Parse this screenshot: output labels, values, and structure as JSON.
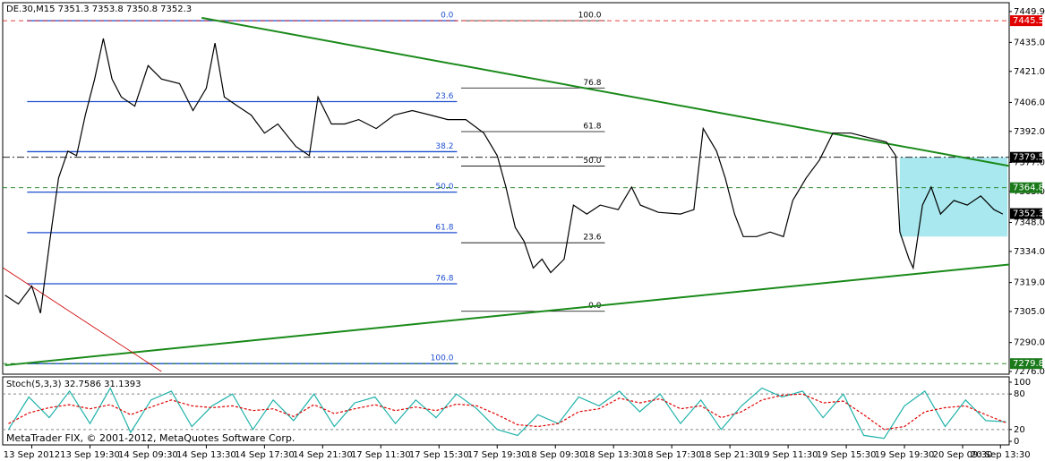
{
  "chart_data": [
    {
      "type": "line",
      "title": "DE.30,M15  7351.3 7353.8 7350.8 7352.3",
      "footer": "MetaTrader FIX, © 2001-2012, MetaQuotes Software Corp.",
      "xlim": [
        -0.5,
        16.8
      ],
      "xticks": [
        {
          "value": 0,
          "label": "13 Sep 2012"
        },
        {
          "value": 1,
          "label": "13 Sep 19:30"
        },
        {
          "value": 2,
          "label": "14 Sep 09:30"
        },
        {
          "value": 3,
          "label": "14 Sep 13:30"
        },
        {
          "value": 4,
          "label": "14 Sep 17:30"
        },
        {
          "value": 5,
          "label": "14 Sep 21:30"
        },
        {
          "value": 6,
          "label": "17 Sep 11:30"
        },
        {
          "value": 7,
          "label": "17 Sep 15:30"
        },
        {
          "value": 8,
          "label": "17 Sep 19:30"
        },
        {
          "value": 9,
          "label": "18 Sep 09:30"
        },
        {
          "value": 10,
          "label": "18 Sep 13:30"
        },
        {
          "value": 11,
          "label": "18 Sep 17:30"
        },
        {
          "value": 12,
          "label": "18 Sep 21:30"
        },
        {
          "value": 13,
          "label": "19 Sep 11:30"
        },
        {
          "value": 14,
          "label": "19 Sep 15:30"
        },
        {
          "value": 15,
          "label": "19 Sep 19:30"
        },
        {
          "value": 16,
          "label": "20 Sep 09:30"
        },
        {
          "value": 16.65,
          "label": "20 Sep 13:30"
        }
      ],
      "ylim": [
        7274.7,
        7454.2
      ],
      "yticks": [
        7449.9,
        {
          "value": 7435,
          "label": "7435.0"
        },
        {
          "value": 7421,
          "label": "7421.0"
        },
        {
          "value": 7406,
          "label": "7406.0"
        },
        {
          "value": 7392,
          "label": "7392.0"
        },
        {
          "value": 7377,
          "label": "7377.0"
        },
        {
          "value": 7363,
          "label": "7363.0"
        },
        {
          "value": 7348,
          "label": "7348.0"
        },
        {
          "value": 7334,
          "label": "7334.0"
        },
        {
          "value": 7319,
          "label": "7319.0"
        },
        {
          "value": 7305,
          "label": "7305.0"
        },
        {
          "value": 7290,
          "label": "7290.0"
        },
        {
          "value": 7276,
          "label": "7276.0"
        }
      ],
      "series": [
        {
          "color": "#000000",
          "x": [
            -0.46,
            -0.23,
            0,
            0.15,
            0.31,
            0.46,
            0.62,
            0.77,
            0.92,
            1.08,
            1.23,
            1.38,
            1.54,
            1.77,
            2.0,
            2.23,
            2.54,
            2.77,
            3.0,
            3.15,
            3.31,
            3.54,
            3.77,
            4.0,
            4.23,
            4.54,
            4.77,
            4.92,
            5.15,
            5.38,
            5.62,
            5.92,
            6.23,
            6.54,
            6.85,
            7.15,
            7.46,
            7.77,
            8.0,
            8.15,
            8.31,
            8.46,
            8.62,
            8.77,
            8.92,
            9.15,
            9.31,
            9.54,
            9.77,
            10.08,
            10.31,
            10.46,
            10.77,
            11.15,
            11.38,
            11.54,
            11.77,
            11.92,
            12.08,
            12.23,
            12.46,
            12.69,
            12.92,
            13.08,
            13.31,
            13.54,
            13.77,
            14.08,
            14.38,
            14.69,
            14.85,
            14.92,
            15.08,
            15.15,
            15.31,
            15.46,
            15.62,
            15.85,
            16.08,
            16.31,
            16.54,
            16.69
          ],
          "values": [
            7312.9,
            7308.6,
            7317.3,
            7304.2,
            7339.0,
            7369.5,
            7382.5,
            7380.3,
            7399.9,
            7417.3,
            7436.9,
            7417.3,
            7408.6,
            7404.2,
            7423.8,
            7417.3,
            7415.1,
            7402.1,
            7412.9,
            7434.7,
            7408.6,
            7404.2,
            7399.9,
            7391.2,
            7395.6,
            7384.7,
            7380.3,
            7408.6,
            7395.6,
            7395.6,
            7397.7,
            7393.4,
            7399.9,
            7402.1,
            7399.9,
            7397.7,
            7397.7,
            7391.2,
            7380.3,
            7365.1,
            7345.6,
            7339.0,
            7326.0,
            7330.3,
            7323.8,
            7330.3,
            7356.4,
            7352.1,
            7356.4,
            7354.2,
            7365.1,
            7356.4,
            7352.9,
            7352.1,
            7354.2,
            7393.4,
            7382.5,
            7369.5,
            7352.1,
            7341.2,
            7341.2,
            7343.4,
            7341.2,
            7358.6,
            7369.5,
            7378.2,
            7391.2,
            7391.2,
            7389.0,
            7386.9,
            7380.3,
            7343.4,
            7330.3,
            7326.0,
            7356.4,
            7365.1,
            7352.1,
            7358.6,
            7356.4,
            7360.8,
            7354.2,
            7352.1
          ]
        }
      ],
      "price_labels": [
        {
          "value": 7445.5,
          "color": "#e00000"
        },
        {
          "value": 7379.5,
          "color": "#000000"
        },
        {
          "value": 7364.8,
          "color": "#1a7a1a"
        },
        {
          "value": 7352.3,
          "color": "#000000"
        },
        {
          "value": 7279.8,
          "color": "#1a7a1a"
        }
      ],
      "fib_sets": [
        {
          "color": "#1f4fd0",
          "x": [
            -0.08,
            7.31
          ],
          "levels": [
            {
              "label": "0.0",
              "price": 7445.5
            },
            {
              "label": "23.6",
              "price": 7406.4
            },
            {
              "label": "38.2",
              "price": 7382.2
            },
            {
              "label": "50.0",
              "price": 7362.65
            },
            {
              "label": "61.8",
              "price": 7343.1
            },
            {
              "label": "76.8",
              "price": 7318.4
            },
            {
              "label": "100.0",
              "price": 7279.8
            }
          ]
        },
        {
          "color": "#000000",
          "x": [
            7.38,
            9.85
          ],
          "levels": [
            {
              "label": "100.0",
              "price": 7445.5
            },
            {
              "label": "76.8",
              "price": 7413.0
            },
            {
              "label": "61.8",
              "price": 7391.9
            },
            {
              "label": "50.0",
              "price": 7375.3
            },
            {
              "label": "23.6",
              "price": 7338.2
            },
            {
              "label": "0.0",
              "price": 7305.1
            }
          ]
        }
      ],
      "trendlines": [
        {
          "color": "#1a8a1a",
          "x": [
            2.92,
            16.8
          ],
          "y": [
            7446.9,
            7375.3
          ]
        },
        {
          "color": "#1a8a1a",
          "x": [
            -0.46,
            16.8
          ],
          "y": [
            7279.0,
            7327.7
          ]
        },
        {
          "color": "#d00000",
          "x": [
            -0.49,
            2.23
          ],
          "y": [
            7326.0,
            7276.0
          ]
        }
      ],
      "zones": [
        {
          "color": "#a8e8ee",
          "x": [
            14.92,
            16.77
          ],
          "y": [
            7341.2,
            7379.5
          ]
        }
      ]
    },
    {
      "type": "line",
      "title": "Stoch(5,3,3) 32.7586 31.1393",
      "xlim": [
        -0.5,
        16.8
      ],
      "ylim": [
        -6,
        109
      ],
      "yticks": [
        0,
        20,
        80,
        100
      ],
      "x": [
        -0.4,
        -0.05,
        0.3,
        0.65,
        1.0,
        1.35,
        1.7,
        2.05,
        2.4,
        2.75,
        3.1,
        3.45,
        3.8,
        4.15,
        4.5,
        4.85,
        5.2,
        5.55,
        5.9,
        6.25,
        6.6,
        6.95,
        7.3,
        7.65,
        8.0,
        8.35,
        8.7,
        9.05,
        9.4,
        9.75,
        10.1,
        10.45,
        10.8,
        11.15,
        11.5,
        11.85,
        12.2,
        12.55,
        12.9,
        13.25,
        13.6,
        13.95,
        14.3,
        14.65,
        15.0,
        15.35,
        15.7,
        16.05,
        16.4,
        16.75
      ],
      "series": [
        {
          "color": "#20b2aa",
          "values": [
            20,
            75,
            40,
            85,
            30,
            90,
            15,
            70,
            85,
            25,
            60,
            80,
            20,
            70,
            35,
            80,
            25,
            65,
            75,
            30,
            70,
            40,
            80,
            55,
            20,
            10,
            45,
            30,
            75,
            60,
            85,
            50,
            80,
            30,
            70,
            20,
            60,
            90,
            75,
            85,
            40,
            80,
            10,
            5,
            60,
            85,
            25,
            70,
            35,
            33
          ]
        },
        {
          "color": "#e00000",
          "values": [
            30,
            48,
            57,
            62,
            55,
            62,
            45,
            58,
            70,
            60,
            57,
            60,
            52,
            55,
            42,
            62,
            47,
            55,
            62,
            52,
            58,
            52,
            63,
            60,
            45,
            28,
            25,
            30,
            50,
            55,
            73,
            65,
            72,
            55,
            60,
            40,
            50,
            70,
            78,
            80,
            65,
            68,
            45,
            20,
            25,
            50,
            57,
            60,
            45,
            31
          ]
        }
      ]
    }
  ]
}
